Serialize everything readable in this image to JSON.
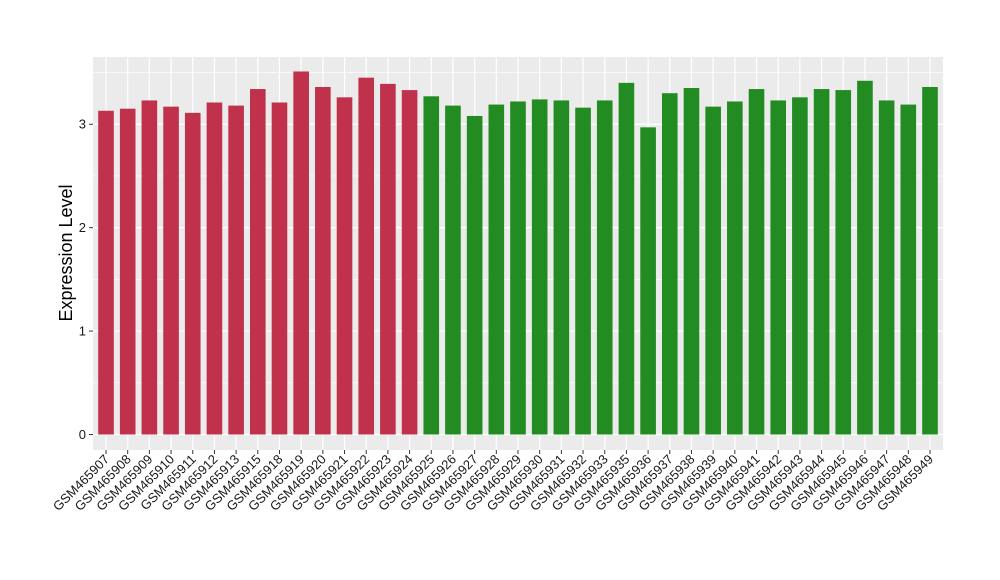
{
  "chart_data": {
    "type": "bar",
    "ylabel": "Expression Level",
    "xlabel": "",
    "ylim": [
      -0.15,
      3.65
    ],
    "yticks": [
      0,
      1,
      2,
      3
    ],
    "grid": true,
    "legend": "none",
    "colors": {
      "red": "#c0314b",
      "green": "#228b22",
      "panel": "#ebebeb",
      "gridline": "#ffffff"
    },
    "categories": [
      "GSM465907",
      "GSM465908",
      "GSM465909",
      "GSM465910",
      "GSM465911",
      "GSM465912",
      "GSM465913",
      "GSM465915",
      "GSM465918",
      "GSM465919",
      "GSM465920",
      "GSM465921",
      "GSM465922",
      "GSM465923",
      "GSM465924",
      "GSM465925",
      "GSM465926",
      "GSM465927",
      "GSM465928",
      "GSM465929",
      "GSM465930",
      "GSM465931",
      "GSM465932",
      "GSM465933",
      "GSM465935",
      "GSM465936",
      "GSM465937",
      "GSM465938",
      "GSM465939",
      "GSM465940",
      "GSM465941",
      "GSM465942",
      "GSM465943",
      "GSM465944",
      "GSM465945",
      "GSM465946",
      "GSM465947",
      "GSM465948",
      "GSM465949"
    ],
    "values": [
      3.13,
      3.15,
      3.23,
      3.17,
      3.11,
      3.21,
      3.18,
      3.34,
      3.21,
      3.51,
      3.36,
      3.26,
      3.45,
      3.39,
      3.33,
      3.27,
      3.18,
      3.08,
      3.19,
      3.22,
      3.24,
      3.23,
      3.16,
      3.23,
      3.4,
      2.97,
      3.3,
      3.35,
      3.17,
      3.22,
      3.34,
      3.23,
      3.26,
      3.34,
      3.33,
      3.42,
      3.23,
      3.19,
      3.36
    ],
    "bar_colors": [
      "red",
      "red",
      "red",
      "red",
      "red",
      "red",
      "red",
      "red",
      "red",
      "red",
      "red",
      "red",
      "red",
      "red",
      "red",
      "green",
      "green",
      "green",
      "green",
      "green",
      "green",
      "green",
      "green",
      "green",
      "green",
      "green",
      "green",
      "green",
      "green",
      "green",
      "green",
      "green",
      "green",
      "green",
      "green",
      "green",
      "green",
      "green",
      "green"
    ]
  }
}
